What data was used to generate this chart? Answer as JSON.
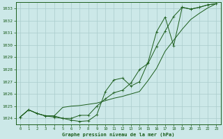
{
  "xlabel_label": "Graphe pression niveau de la mer (hPa)",
  "x_ticks": [
    0,
    1,
    2,
    3,
    4,
    5,
    6,
    7,
    8,
    9,
    10,
    11,
    12,
    13,
    14,
    15,
    16,
    17,
    18,
    19,
    20,
    21,
    22,
    23
  ],
  "ylim": [
    1023.5,
    1033.5
  ],
  "xlim": [
    -0.5,
    23.5
  ],
  "yticks": [
    1024,
    1025,
    1026,
    1027,
    1028,
    1029,
    1030,
    1031,
    1032,
    1033
  ],
  "bg_color": "#cce8e8",
  "grid_color": "#aacccc",
  "line_color": "#1a5c1a",
  "series1_x": [
    0,
    1,
    2,
    3,
    4,
    5,
    6,
    7,
    8,
    9,
    10,
    11,
    12,
    13,
    14,
    15,
    16,
    17,
    18,
    19,
    20,
    21,
    22,
    23
  ],
  "series1_y": [
    1024.1,
    1024.7,
    1024.4,
    1024.2,
    1024.1,
    1024.0,
    1023.85,
    1023.75,
    1023.8,
    1024.3,
    1026.2,
    1027.15,
    1027.3,
    1026.65,
    1027.0,
    1028.6,
    1031.1,
    1032.3,
    1029.95,
    1033.1,
    1032.95,
    1033.1,
    1033.3,
    1033.4
  ],
  "series2_x": [
    0,
    1,
    2,
    3,
    4,
    5,
    6,
    7,
    8,
    9,
    10,
    11,
    12,
    13,
    14,
    15,
    16,
    17,
    18,
    19,
    20,
    21,
    22,
    23
  ],
  "series2_y": [
    1024.1,
    1024.7,
    1024.4,
    1024.2,
    1024.2,
    1024.9,
    1025.0,
    1025.05,
    1025.15,
    1025.25,
    1025.45,
    1025.65,
    1025.8,
    1026.0,
    1026.2,
    1027.1,
    1028.1,
    1029.5,
    1030.4,
    1031.3,
    1032.1,
    1032.6,
    1033.05,
    1033.4
  ],
  "series3_x": [
    0,
    1,
    2,
    3,
    4,
    5,
    6,
    7,
    8,
    9,
    10,
    11,
    12,
    13,
    14,
    15,
    16,
    17,
    18,
    19,
    20,
    21,
    22,
    23
  ],
  "series3_y": [
    1024.1,
    1024.7,
    1024.4,
    1024.2,
    1024.2,
    1024.0,
    1024.0,
    1024.25,
    1024.25,
    1025.0,
    1025.6,
    1026.1,
    1026.3,
    1026.9,
    1028.0,
    1028.5,
    1029.9,
    1031.15,
    1032.35,
    1033.1,
    1032.95,
    1033.1,
    1033.3,
    1033.4
  ]
}
